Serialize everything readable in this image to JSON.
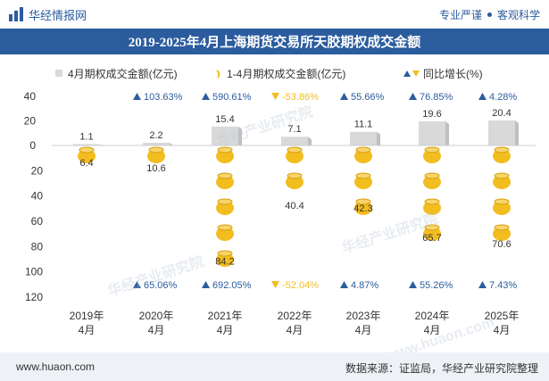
{
  "header": {
    "brand": "华经情报网",
    "tag1": "专业严谨",
    "tag2": "客观科学"
  },
  "title": "2019-2025年4月上海期货交易所天胶期权成交金额",
  "footer": {
    "url": "www.huaon.com",
    "source": "数据来源：证监局，华经产业研究院整理"
  },
  "watermarks": [
    "华经产业研究院",
    "华经产业研究院",
    "华经产业研究院",
    "www.huaon.com"
  ],
  "colors": {
    "title_bg": "#2b5c9e",
    "bar": "#d9d9d9",
    "coin": "#f2bd1f",
    "up": "#2b5c9e",
    "down": "#f2bd1f"
  },
  "chart_data": {
    "type": "bar",
    "categories": [
      "2019年\n4月",
      "2020年\n4月",
      "2021年\n4月",
      "2022年\n4月",
      "2023年\n4月",
      "2024年\n4月",
      "2025年\n4月"
    ],
    "legend": {
      "bar": "4月期权成交金额(亿元)",
      "cumulative": "1-4月期权成交金额(亿元)",
      "growth": "同比增长(%)"
    },
    "series": [
      {
        "name": "4月期权成交金额(亿元)",
        "values": [
          1.1,
          2.2,
          15.4,
          7.1,
          11.1,
          19.6,
          20.4
        ]
      },
      {
        "name": "1-4月期权成交金额(亿元)",
        "values": [
          6.4,
          10.6,
          84.2,
          40.4,
          42.3,
          65.7,
          70.6
        ]
      }
    ],
    "growth_monthly": [
      {
        "text": "",
        "dir": ""
      },
      {
        "text": "103.63%",
        "dir": "up"
      },
      {
        "text": "590.61%",
        "dir": "up"
      },
      {
        "text": "-53.86%",
        "dir": "down"
      },
      {
        "text": "55.66%",
        "dir": "up"
      },
      {
        "text": "76.85%",
        "dir": "up"
      },
      {
        "text": "4.28%",
        "dir": "up"
      }
    ],
    "growth_cumulative": [
      {
        "text": "",
        "dir": ""
      },
      {
        "text": "65.06%",
        "dir": "up"
      },
      {
        "text": "692.05%",
        "dir": "up"
      },
      {
        "text": "-52.04%",
        "dir": "down"
      },
      {
        "text": "4.87%",
        "dir": "up"
      },
      {
        "text": "55.26%",
        "dir": "up"
      },
      {
        "text": "7.43%",
        "dir": "up"
      }
    ],
    "y_ticks_upper": [
      "40",
      "20",
      "0"
    ],
    "y_ticks_lower": [
      "20",
      "40",
      "60",
      "80",
      "100",
      "120"
    ],
    "ylim_upper": [
      0,
      40
    ],
    "ylim_lower": [
      0,
      120
    ]
  }
}
